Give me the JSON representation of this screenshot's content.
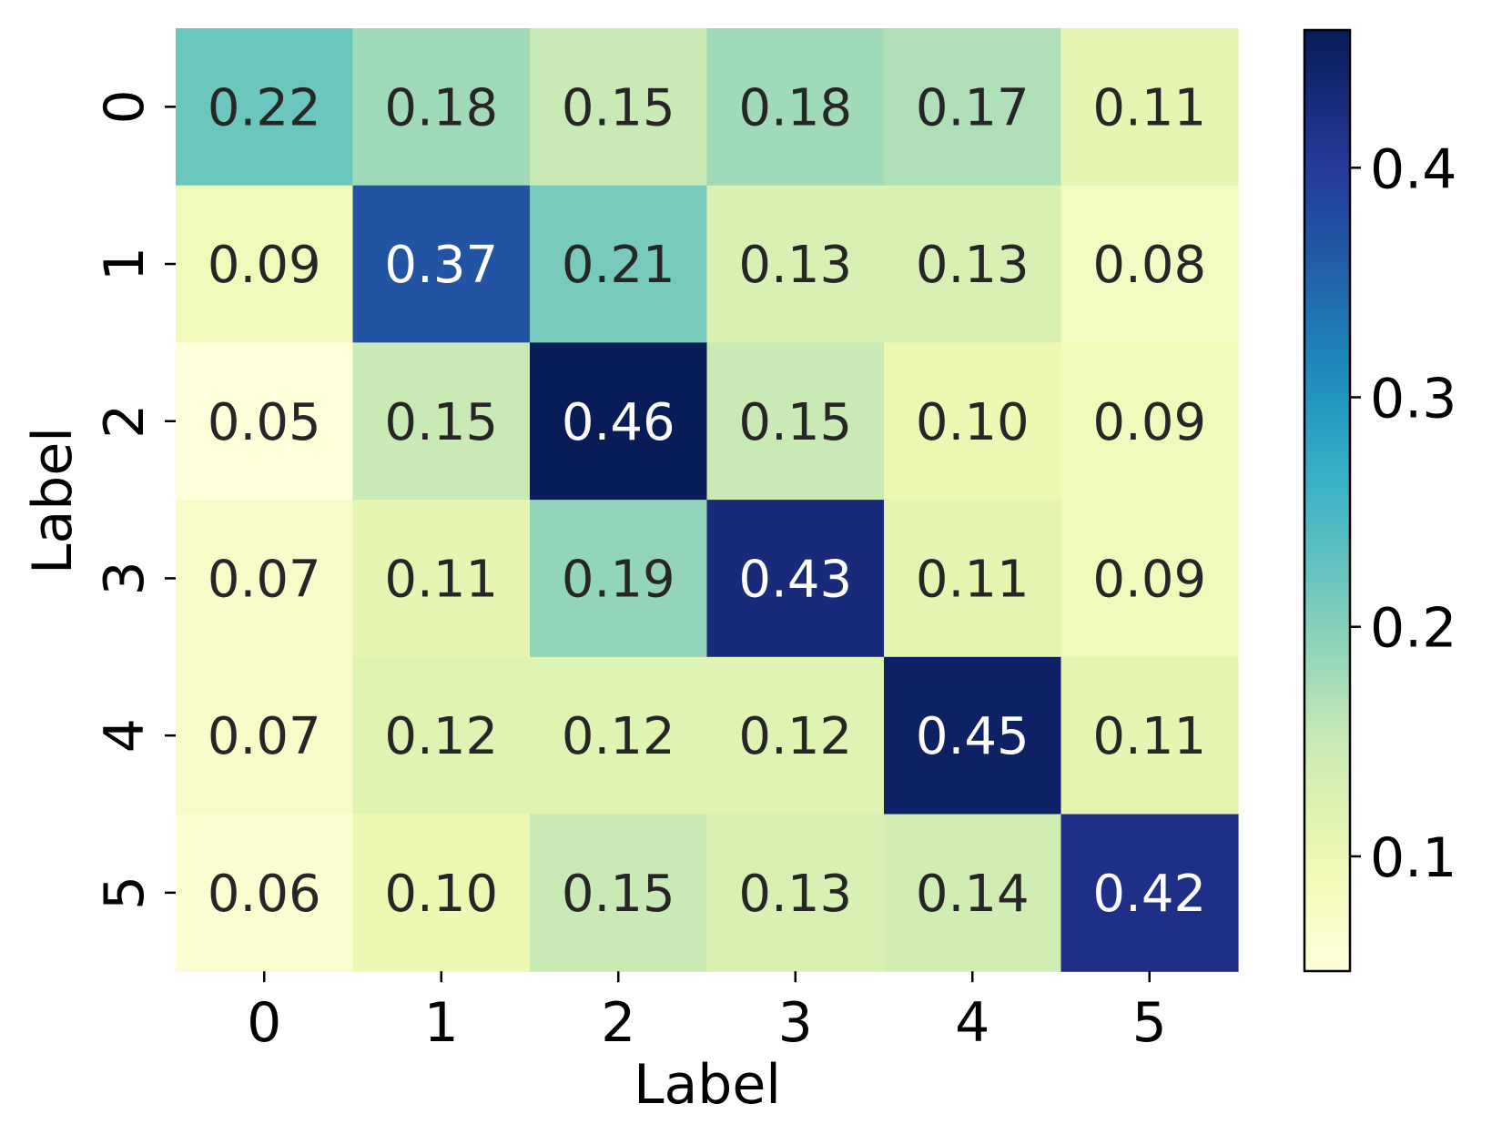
{
  "chart_data": {
    "type": "heatmap",
    "colormap": "YlGnBu",
    "xlabel": "Label",
    "ylabel": "Label",
    "x_categories": [
      "0",
      "1",
      "2",
      "3",
      "4",
      "5"
    ],
    "y_categories": [
      "0",
      "1",
      "2",
      "3",
      "4",
      "5"
    ],
    "values": [
      [
        0.22,
        0.18,
        0.15,
        0.18,
        0.17,
        0.11
      ],
      [
        0.09,
        0.37,
        0.21,
        0.13,
        0.13,
        0.08
      ],
      [
        0.05,
        0.15,
        0.46,
        0.15,
        0.1,
        0.09
      ],
      [
        0.07,
        0.11,
        0.19,
        0.43,
        0.11,
        0.09
      ],
      [
        0.07,
        0.12,
        0.12,
        0.12,
        0.45,
        0.11
      ],
      [
        0.06,
        0.1,
        0.15,
        0.13,
        0.14,
        0.42
      ]
    ],
    "value_format": "0.00",
    "colorbar": {
      "range": [
        0.05,
        0.46
      ],
      "ticks": [
        0.1,
        0.2,
        0.3,
        0.4
      ],
      "tick_labels": [
        "0.1",
        "0.2",
        "0.3",
        "0.4"
      ],
      "placement": "right"
    },
    "annotation_colors": {
      "light_cell": "#262626",
      "dark_cell": "#ffffff"
    }
  }
}
